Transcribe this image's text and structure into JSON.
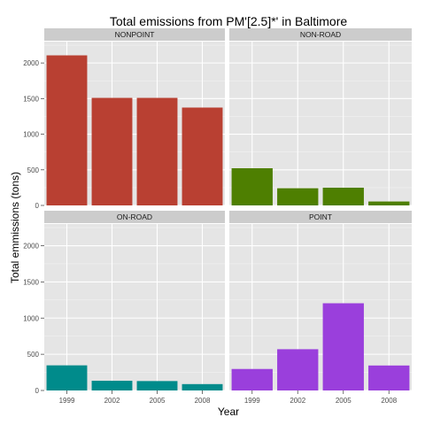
{
  "chart_data": {
    "type": "bar",
    "title": "Total emissions from PM'[2.5]*' in Baltimore",
    "xlabel": "Year",
    "ylabel": "Total emmissions (tons)",
    "categories": [
      "1999",
      "2002",
      "2005",
      "2008"
    ],
    "ylim": [
      0,
      2300
    ],
    "yticks": [
      0,
      500,
      1000,
      1500,
      2000
    ],
    "grid": true,
    "panels": [
      {
        "name": "NONPOINT",
        "color": "#b94032",
        "values": [
          2107,
          1510,
          1510,
          1374
        ]
      },
      {
        "name": "NON-ROAD",
        "color": "#4e7f01",
        "values": [
          522,
          241,
          249,
          55
        ]
      },
      {
        "name": "ON-ROAD",
        "color": "#008b8b",
        "values": [
          347,
          134,
          130,
          88
        ]
      },
      {
        "name": "POINT",
        "color": "#9a3fdc",
        "values": [
          297,
          570,
          1205,
          345
        ]
      }
    ]
  }
}
